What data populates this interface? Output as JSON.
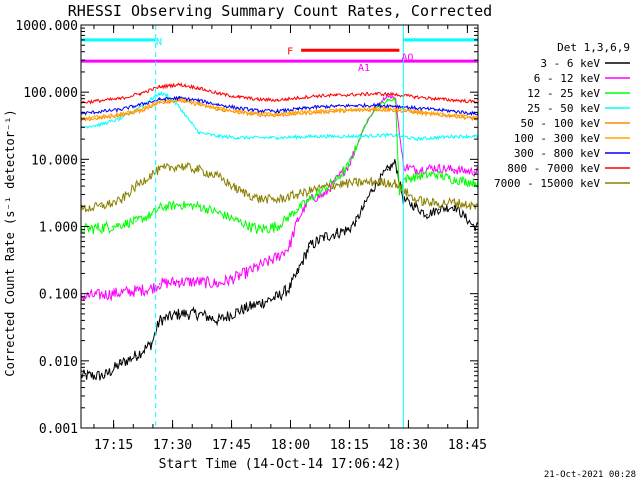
{
  "chart_data": {
    "type": "line",
    "title": "RHESSI Observing Summary Count Rates, Corrected",
    "ylabel": "Corrected Count Rate (s⁻¹ detector⁻¹)",
    "xlabel": "Start Time (14-Oct-14 17:06:42)",
    "footer": "21-Oct-2021 00:28",
    "yscale": "log",
    "ylim": [
      0.001,
      1000
    ],
    "xlim_minutes": [
      0,
      101
    ],
    "yticks": [
      {
        "value": 1000,
        "label": "1000.000"
      },
      {
        "value": 100,
        "label": "100.000"
      },
      {
        "value": 10,
        "label": "10.000"
      },
      {
        "value": 1,
        "label": "1.000"
      },
      {
        "value": 0.1,
        "label": "0.100"
      },
      {
        "value": 0.01,
        "label": "0.010"
      },
      {
        "value": 0.001,
        "label": "0.001"
      }
    ],
    "xticks": [
      {
        "value": 8.3,
        "label": "17:15"
      },
      {
        "value": 23.3,
        "label": "17:30"
      },
      {
        "value": 38.3,
        "label": "17:45"
      },
      {
        "value": 53.3,
        "label": "18:00"
      },
      {
        "value": 68.3,
        "label": "18:15"
      },
      {
        "value": 83.3,
        "label": "18:30"
      },
      {
        "value": 98.3,
        "label": "18:45"
      }
    ],
    "legend_title": "Det 1,3,6,9",
    "legend_position": "right",
    "grid": false,
    "series": [
      {
        "name": "3 - 6 keV",
        "color": "#000000",
        "x": [
          0,
          6,
          10,
          14,
          18,
          20,
          25,
          30,
          35,
          40,
          45,
          50,
          53,
          55,
          58,
          62,
          65,
          68,
          70,
          72,
          74,
          76,
          78,
          80,
          82,
          85,
          88,
          91,
          95,
          100
        ],
        "y": [
          0.006,
          0.006,
          0.009,
          0.012,
          0.018,
          0.04,
          0.05,
          0.05,
          0.04,
          0.055,
          0.07,
          0.09,
          0.12,
          0.2,
          0.5,
          0.7,
          0.8,
          0.9,
          1.2,
          2.0,
          3.5,
          5,
          7,
          9,
          2.5,
          2,
          1.5,
          1.8,
          2,
          1
        ]
      },
      {
        "name": "6 - 12 keV",
        "color": "#ff00ff",
        "x": [
          0,
          8,
          14,
          18,
          20,
          25,
          30,
          35,
          40,
          45,
          50,
          53,
          55,
          58,
          62,
          65,
          68,
          70,
          72,
          75,
          78,
          80,
          82,
          85,
          90,
          95,
          100
        ],
        "y": [
          0.09,
          0.1,
          0.11,
          0.12,
          0.14,
          0.15,
          0.15,
          0.14,
          0.18,
          0.25,
          0.35,
          0.5,
          1.2,
          2.5,
          3,
          5,
          8,
          15,
          30,
          60,
          90,
          80,
          8,
          7,
          7.5,
          7,
          6.5
        ]
      },
      {
        "name": "12 - 25 keV",
        "color": "#00ff00",
        "x": [
          0,
          8,
          14,
          18,
          20,
          25,
          30,
          35,
          40,
          45,
          50,
          55,
          60,
          65,
          68,
          70,
          72,
          75,
          78,
          80,
          81,
          82,
          85,
          90,
          95,
          100
        ],
        "y": [
          0.9,
          1.0,
          1.2,
          1.5,
          1.9,
          2.1,
          2.0,
          1.6,
          1.2,
          0.9,
          1.0,
          1.8,
          3,
          5,
          8,
          15,
          30,
          60,
          75,
          80,
          3,
          5,
          5.5,
          6,
          5,
          4.5
        ]
      },
      {
        "name": "25 - 50 keV",
        "color": "#00ffff",
        "x": [
          0,
          5,
          10,
          14,
          18,
          20,
          22,
          25,
          28,
          30,
          35,
          40,
          50,
          60,
          70,
          78,
          82,
          85,
          90,
          95,
          100
        ],
        "y": [
          30,
          33,
          40,
          55,
          80,
          95,
          90,
          60,
          35,
          25,
          22,
          21,
          21,
          22,
          22,
          23,
          22,
          20,
          21,
          22,
          22
        ]
      },
      {
        "name": "50 - 100 keV",
        "color": "#ff8c00",
        "x": [
          0,
          10,
          15,
          20,
          25,
          30,
          35,
          40,
          45,
          50,
          55,
          60,
          65,
          70,
          75,
          80,
          85,
          90,
          95,
          100
        ],
        "y": [
          38,
          45,
          52,
          70,
          75,
          65,
          55,
          50,
          46,
          45,
          48,
          50,
          52,
          53,
          55,
          54,
          50,
          46,
          44,
          40
        ]
      },
      {
        "name": "100 - 300 keV",
        "color": "#ffa500",
        "x": [
          0,
          10,
          15,
          20,
          25,
          30,
          35,
          40,
          45,
          50,
          55,
          60,
          65,
          70,
          75,
          80,
          85,
          90,
          95,
          100
        ],
        "y": [
          40,
          47,
          55,
          72,
          78,
          68,
          58,
          52,
          48,
          47,
          50,
          52,
          54,
          55,
          57,
          56,
          52,
          48,
          46,
          42
        ]
      },
      {
        "name": "300 - 800 keV",
        "color": "#0000ff",
        "x": [
          0,
          10,
          15,
          20,
          25,
          30,
          35,
          40,
          45,
          50,
          55,
          60,
          65,
          70,
          75,
          80,
          85,
          90,
          95,
          100
        ],
        "y": [
          48,
          55,
          65,
          78,
          82,
          75,
          65,
          58,
          53,
          52,
          56,
          60,
          62,
          63,
          64,
          62,
          58,
          55,
          52,
          48
        ]
      },
      {
        "name": "800 - 7000 keV",
        "color": "#ff0000",
        "x": [
          0,
          10,
          15,
          20,
          25,
          30,
          35,
          40,
          45,
          50,
          55,
          60,
          65,
          70,
          75,
          80,
          85,
          90,
          95,
          100
        ],
        "y": [
          70,
          80,
          95,
          120,
          130,
          115,
          95,
          85,
          78,
          76,
          82,
          88,
          90,
          92,
          95,
          92,
          85,
          80,
          76,
          72
        ]
      },
      {
        "name": "7000 - 15000 keV",
        "color": "#8b8000",
        "x": [
          0,
          5,
          10,
          14,
          18,
          20,
          25,
          30,
          35,
          40,
          45,
          50,
          55,
          60,
          65,
          70,
          75,
          80,
          85,
          90,
          95,
          100
        ],
        "y": [
          1.8,
          2.0,
          2.4,
          4,
          6,
          7,
          8,
          7,
          5.5,
          3.5,
          2.6,
          2.5,
          3.0,
          3.6,
          4.2,
          4.5,
          4.6,
          4.4,
          2.5,
          2.2,
          2.3,
          2.0
        ]
      }
    ],
    "annotations": [
      {
        "kind": "interval",
        "label": "N",
        "color": "#00ffff",
        "x_start": 0,
        "x_end": 19,
        "y": 600
      },
      {
        "kind": "interval",
        "label": "N",
        "color": "#00ffff",
        "x_start": 82,
        "x_end": 101,
        "y": 600
      },
      {
        "kind": "interval",
        "label": "F",
        "color": "#ff0000",
        "x_start": 56,
        "x_end": 81,
        "y": 420
      },
      {
        "kind": "interval",
        "label": "A1",
        "color": "#ff00ff",
        "x_start": 0,
        "x_end": 101,
        "y": 290
      },
      {
        "kind": "marker",
        "label": "AO",
        "color": "#ff00ff",
        "x": 82,
        "y": 340
      },
      {
        "kind": "vline",
        "color": "#00ffff",
        "x": 0,
        "style": "solid"
      },
      {
        "kind": "vline",
        "color": "#00ffff",
        "x": 19,
        "style": "dashed"
      },
      {
        "kind": "vline",
        "color": "#00ffff",
        "x": 82,
        "style": "solid"
      },
      {
        "kind": "vline",
        "color": "#00ffff",
        "x": 101,
        "style": "dashed"
      }
    ]
  }
}
